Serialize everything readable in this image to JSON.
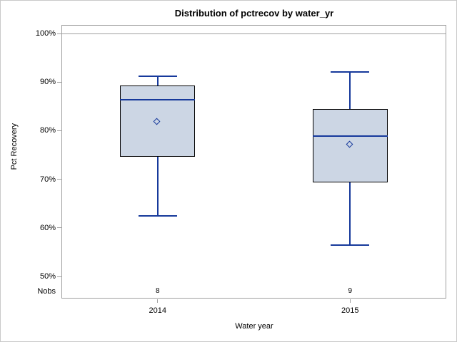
{
  "title": "Distribution of pctrecov by water_yr",
  "colors": {
    "background": "#ffffff",
    "image_border": "#c9c9c9",
    "frame_gray": "#a0a0a0",
    "box_fill": "#ccd6e4",
    "box_border": "#000000",
    "line_blue": "#16399b",
    "text": "#000000"
  },
  "chart_data": {
    "type": "boxplot",
    "title": "Distribution of pctrecov by water_yr",
    "xlabel": "Water year",
    "ylabel": "Pct Recovery",
    "ylim": [
      50,
      100
    ],
    "ytick_values": [
      100,
      90,
      80,
      70,
      60,
      50
    ],
    "ytick_labels": [
      "100%",
      "90%",
      "80%",
      "70%",
      "60%",
      "50%"
    ],
    "reference_line": 100,
    "grid": "off",
    "nobs_row_label": "Nobs",
    "categories": [
      "2014",
      "2015"
    ],
    "series": [
      {
        "category": "2014",
        "nobs": "8",
        "whisker_low": 62.5,
        "q1": 74.6,
        "median": 86.4,
        "q3": 89.3,
        "whisker_high": 91.2,
        "mean": 81.8
      },
      {
        "category": "2015",
        "nobs": "9",
        "whisker_low": 56.4,
        "q1": 69.4,
        "median": 78.9,
        "q3": 84.5,
        "whisker_high": 92.1,
        "mean": 77.0
      }
    ]
  }
}
